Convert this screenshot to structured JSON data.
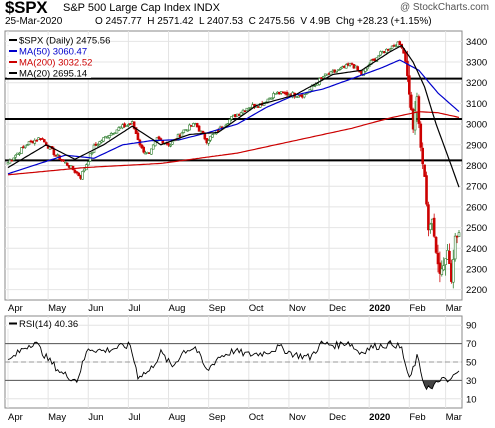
{
  "header": {
    "symbol": "$SPX",
    "name": "S&P 500 Large Cap Index INDX",
    "watermark": "@ StockCharts.com",
    "date": "25-Mar-2020",
    "quote": "O 2457.77  H 2571.42  L 2407.53  C 2475.56  V 4.9B  Chg +28.23 (+1.15%)"
  },
  "colors": {
    "up": "#2e7d2e",
    "down": "#cc0000",
    "ma50": "#0000cc",
    "ma200": "#cc0000",
    "ma20": "#000000",
    "rsi_line": "#000000",
    "rsi_fill": "#444444"
  },
  "chart_data": [
    {
      "type": "candlestick",
      "legend": [
        {
          "label": "$SPX (Daily) 2475.56",
          "color": "#000000"
        },
        {
          "label": "MA(50) 3060.47",
          "color": "#0000cc"
        },
        {
          "label": "MA(200) 3032.52",
          "color": "#cc0000"
        },
        {
          "label": "MA(20) 2695.14",
          "color": "#000000"
        }
      ],
      "ylim": [
        2150,
        3450
      ],
      "yticks": [
        2200,
        2300,
        2400,
        2500,
        2600,
        2700,
        2800,
        2900,
        3000,
        3100,
        3200,
        3300,
        3400
      ],
      "xticks": [
        "Apr",
        "May",
        "Jun",
        "Jul",
        "Aug",
        "Sep",
        "Oct",
        "Nov",
        "Dec",
        "2020",
        "Feb",
        "Mar"
      ],
      "horizontal_lines": [
        3220,
        3025,
        2825
      ],
      "close_anchors": [
        [
          0,
          2815
        ],
        [
          10,
          2905
        ],
        [
          17,
          2935
        ],
        [
          25,
          2850
        ],
        [
          33,
          2790
        ],
        [
          38,
          2745
        ],
        [
          45,
          2890
        ],
        [
          52,
          2945
        ],
        [
          58,
          2980
        ],
        [
          65,
          3005
        ],
        [
          70,
          2880
        ],
        [
          74,
          2850
        ],
        [
          78,
          2930
        ],
        [
          85,
          2900
        ],
        [
          92,
          2970
        ],
        [
          98,
          3000
        ],
        [
          104,
          2920
        ],
        [
          110,
          2970
        ],
        [
          117,
          3030
        ],
        [
          125,
          3080
        ],
        [
          133,
          3100
        ],
        [
          140,
          3150
        ],
        [
          148,
          3145
        ],
        [
          155,
          3140
        ],
        [
          165,
          3230
        ],
        [
          173,
          3260
        ],
        [
          180,
          3290
        ],
        [
          185,
          3240
        ],
        [
          190,
          3300
        ],
        [
          195,
          3340
        ],
        [
          200,
          3370
        ],
        [
          203,
          3390
        ],
        [
          206,
          3380
        ],
        [
          208,
          3310
        ],
        [
          210,
          3150
        ],
        [
          212,
          2980
        ],
        [
          214,
          3130
        ],
        [
          216,
          2880
        ],
        [
          218,
          2750
        ],
        [
          220,
          2480
        ],
        [
          222,
          2550
        ],
        [
          224,
          2380
        ],
        [
          226,
          2280
        ],
        [
          228,
          2320
        ],
        [
          230,
          2400
        ],
        [
          232,
          2240
        ],
        [
          234,
          2450
        ],
        [
          236,
          2475.56
        ]
      ],
      "ma_anchors": {
        "MA(50)": [
          [
            0,
            2760
          ],
          [
            30,
            2850
          ],
          [
            45,
            2835
          ],
          [
            60,
            2900
          ],
          [
            75,
            2920
          ],
          [
            90,
            2925
          ],
          [
            105,
            2960
          ],
          [
            120,
            3000
          ],
          [
            135,
            3080
          ],
          [
            150,
            3140
          ],
          [
            165,
            3170
          ],
          [
            180,
            3220
          ],
          [
            195,
            3270
          ],
          [
            205,
            3310
          ],
          [
            215,
            3260
          ],
          [
            225,
            3150
          ],
          [
            236,
            3060.47
          ]
        ],
        "MA(200)": [
          [
            0,
            2755
          ],
          [
            40,
            2790
          ],
          [
            80,
            2810
          ],
          [
            120,
            2860
          ],
          [
            150,
            2920
          ],
          [
            180,
            2980
          ],
          [
            200,
            3030
          ],
          [
            215,
            3060
          ],
          [
            225,
            3055
          ],
          [
            236,
            3032.52
          ]
        ],
        "MA(20)": [
          [
            0,
            2790
          ],
          [
            20,
            2900
          ],
          [
            35,
            2830
          ],
          [
            50,
            2900
          ],
          [
            65,
            2990
          ],
          [
            80,
            2900
          ],
          [
            95,
            2950
          ],
          [
            110,
            2960
          ],
          [
            130,
            3090
          ],
          [
            150,
            3140
          ],
          [
            170,
            3240
          ],
          [
            185,
            3260
          ],
          [
            200,
            3350
          ],
          [
            206,
            3380
          ],
          [
            212,
            3300
          ],
          [
            218,
            3180
          ],
          [
            224,
            3000
          ],
          [
            230,
            2850
          ],
          [
            236,
            2695.14
          ]
        ]
      }
    },
    {
      "type": "line",
      "legend": "RSI(14) 40.36",
      "ylim": [
        0,
        100
      ],
      "yticks": [
        10,
        30,
        50,
        70,
        90
      ],
      "overbought": 70,
      "oversold": 30,
      "xticks": [
        "Apr",
        "May",
        "Jun",
        "Jul",
        "Aug",
        "Sep",
        "Oct",
        "Nov",
        "Dec",
        "2020",
        "Feb",
        "Mar"
      ],
      "anchors": [
        [
          0,
          50
        ],
        [
          8,
          65
        ],
        [
          14,
          72
        ],
        [
          20,
          55
        ],
        [
          28,
          38
        ],
        [
          36,
          30
        ],
        [
          42,
          65
        ],
        [
          50,
          62
        ],
        [
          58,
          66
        ],
        [
          64,
          68
        ],
        [
          68,
          35
        ],
        [
          74,
          40
        ],
        [
          80,
          60
        ],
        [
          86,
          45
        ],
        [
          92,
          62
        ],
        [
          98,
          66
        ],
        [
          104,
          40
        ],
        [
          110,
          55
        ],
        [
          118,
          62
        ],
        [
          126,
          58
        ],
        [
          134,
          60
        ],
        [
          142,
          66
        ],
        [
          150,
          58
        ],
        [
          158,
          55
        ],
        [
          164,
          70
        ],
        [
          172,
          68
        ],
        [
          178,
          72
        ],
        [
          184,
          60
        ],
        [
          190,
          66
        ],
        [
          196,
          68
        ],
        [
          202,
          70
        ],
        [
          206,
          64
        ],
        [
          210,
          30
        ],
        [
          214,
          55
        ],
        [
          218,
          25
        ],
        [
          222,
          20
        ],
        [
          226,
          32
        ],
        [
          230,
          28
        ],
        [
          234,
          36
        ],
        [
          236,
          40.36
        ]
      ]
    }
  ]
}
